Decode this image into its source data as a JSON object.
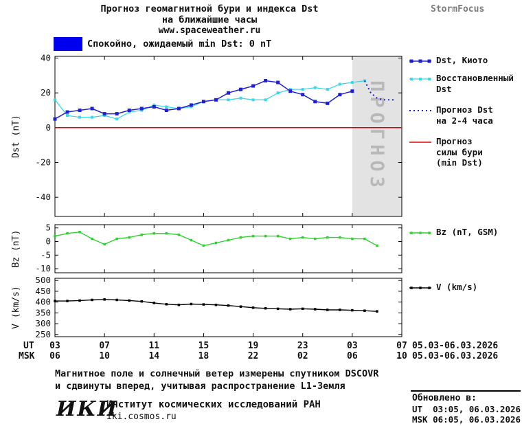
{
  "header": {
    "title_line1": "Прогноз геомагнитной бури и индекса Dst",
    "title_line2": "на ближайшие часы",
    "site": "www.spaceweather.ru",
    "brand": "StormFocus"
  },
  "status_banner": {
    "color": "#0000ee",
    "text": "Спокойно, ожидаемый min Dst: 0 nT"
  },
  "chart_data": [
    {
      "type": "line",
      "panel": "dst",
      "ylabel": "Dst (nT)",
      "ylim": [
        -51,
        41
      ],
      "yticks": [
        40,
        20,
        0,
        -20,
        -40
      ],
      "xlim": [
        0,
        28
      ],
      "x_unit": "hours from 03:00 UT 05.03.2026",
      "forecast_region": {
        "x_start": 24,
        "x_end": 28,
        "label": "ПРОГНОЗ"
      },
      "series": [
        {
          "name": "Прогноз силы бури (min Dst)",
          "color": "#e00000",
          "width": 1.5,
          "x": [
            0,
            28
          ],
          "values": [
            0,
            0
          ]
        },
        {
          "name": "Восстановленный Dst",
          "color": "#3ad9e8",
          "marker": "square",
          "marker_size": 4,
          "width": 1.3,
          "x_start": 0,
          "values": [
            16,
            7,
            6,
            6,
            7,
            5,
            9,
            10,
            13,
            12,
            11,
            12,
            15,
            16,
            16,
            17,
            16,
            16,
            20,
            22,
            22,
            23,
            22,
            25,
            26,
            27
          ]
        },
        {
          "name": "Прогноз Dst на 2-4 часа",
          "color": "#2020d0",
          "width": 2,
          "dash": "2 4",
          "x": [
            25,
            25.5,
            26,
            26.5,
            27,
            27.5
          ],
          "values": [
            27,
            20,
            17,
            16,
            16,
            16
          ]
        },
        {
          "name": "Dst, Киото",
          "color": "#2020d0",
          "marker": "square",
          "marker_size": 5,
          "width": 1.5,
          "x_start": 0,
          "values": [
            5,
            9,
            10,
            11,
            8,
            8,
            10,
            11,
            12,
            10,
            11,
            13,
            15,
            16,
            20,
            22,
            24,
            27,
            26,
            21,
            19,
            15,
            14,
            19,
            21
          ]
        }
      ]
    },
    {
      "type": "line",
      "panel": "bz",
      "ylabel": "Bz (nT)",
      "ylim": [
        -11.5,
        6.2
      ],
      "yticks": [
        5,
        0,
        -5,
        -10
      ],
      "xlim": [
        0,
        28
      ],
      "series": [
        {
          "name": "Bz (nT, GSM)",
          "color": "#2fd02f",
          "marker": "square",
          "marker_size": 3.5,
          "width": 1.4,
          "x_start": 0,
          "values": [
            2,
            3,
            3.5,
            1,
            -1,
            1,
            1.5,
            2.5,
            3,
            3,
            2.5,
            0.5,
            -1.5,
            -0.5,
            0.5,
            1.5,
            2,
            2,
            2,
            1,
            1.5,
            1,
            1.5,
            1.5,
            1,
            1,
            -1.5
          ]
        }
      ]
    },
    {
      "type": "line",
      "panel": "v",
      "ylabel": "V (km/s)",
      "ylim": [
        240,
        510
      ],
      "yticks": [
        500,
        450,
        400,
        350,
        300,
        250
      ],
      "xlim": [
        0,
        28
      ],
      "series": [
        {
          "name": "V (km/s)",
          "color": "#000000",
          "marker": "square",
          "marker_size": 3.5,
          "width": 1.4,
          "x_start": 0,
          "values": [
            405,
            405,
            407,
            410,
            412,
            410,
            407,
            403,
            396,
            390,
            387,
            391,
            389,
            387,
            384,
            379,
            374,
            371,
            369,
            367,
            369,
            367,
            364,
            364,
            362,
            360,
            357
          ]
        }
      ]
    }
  ],
  "axis": {
    "tick_hours": [
      0,
      4,
      8,
      12,
      16,
      20,
      24,
      28
    ],
    "ut_label": "UT",
    "msk_label": "MSK",
    "ut_ticks": [
      "03",
      "07",
      "11",
      "15",
      "19",
      "23",
      "03",
      "07"
    ],
    "msk_ticks": [
      "06",
      "10",
      "14",
      "18",
      "22",
      "02",
      "06",
      "10"
    ],
    "ut_range": "05.03-06.03.2026",
    "msk_range": "05.03-06.03.2026"
  },
  "legend": {
    "items": [
      {
        "lines": [
          "Dst, Киото"
        ],
        "swatch": "0.3"
      },
      {
        "lines": [
          "Восстановленный",
          "Dst"
        ],
        "swatch": "0.1"
      },
      {
        "lines": [
          "Прогноз Dst",
          "на 2-4 часа"
        ],
        "swatch": "0.2"
      },
      {
        "lines": [
          "Прогноз",
          "силы бури",
          "(min Dst)"
        ],
        "swatch": "0.0"
      },
      {
        "lines": [
          "Bz (nT, GSM)"
        ],
        "swatch": "1.0"
      },
      {
        "lines": [
          "V (km/s)"
        ],
        "swatch": "2.0"
      }
    ]
  },
  "footer": {
    "note_line1": "Магнитное поле и солнечный ветер измерены спутником DSCOVR",
    "note_line2": "и сдвинуты вперед, учитывая распространение L1-Земля",
    "logo": "ИКИ",
    "institute": "Институт космических исследований РАН",
    "institute_site": "iki.cosmos.ru",
    "updated_label": "Обновлено в:",
    "updated_ut": "UT  03:05, 06.03.2026",
    "updated_msk": "MSK 06:05, 06.03.2026"
  }
}
